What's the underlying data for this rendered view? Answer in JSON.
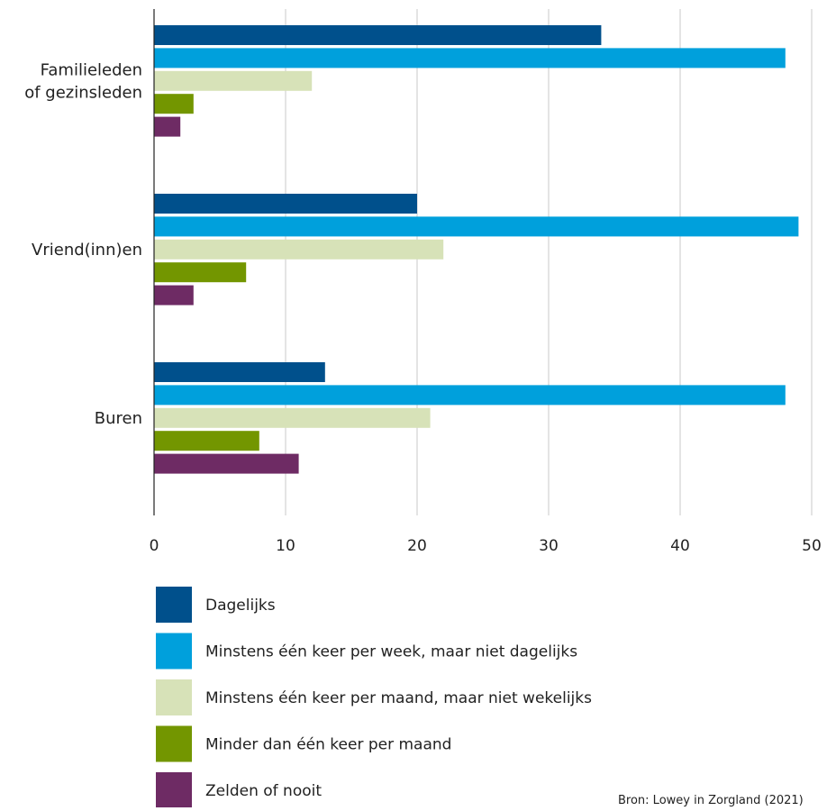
{
  "chart_data": {
    "type": "bar",
    "orientation": "horizontal",
    "title": "",
    "xlabel": "",
    "ylabel": "",
    "xlim": [
      0,
      50
    ],
    "xticks": [
      0,
      10,
      20,
      30,
      40,
      50
    ],
    "grid": true,
    "categories": [
      [
        "Familieleden",
        "of gezinsleden"
      ],
      [
        "Vriend(inn)en"
      ],
      [
        "Buren"
      ]
    ],
    "series": [
      {
        "name": "Dagelijks",
        "color": "#00508c",
        "values": [
          34,
          20,
          13
        ]
      },
      {
        "name": "Minstens één keer per week, maar niet dagelijks",
        "color": "#00a0dc",
        "values": [
          48,
          49,
          48
        ]
      },
      {
        "name": "Minstens één keer per maand, maar niet wekelijks",
        "color": "#d7e2b8",
        "values": [
          12,
          22,
          21
        ]
      },
      {
        "name": "Minder dan één keer per maand",
        "color": "#739600",
        "values": [
          3,
          7,
          8
        ]
      },
      {
        "name": "Zelden of nooit",
        "color": "#6e2b64",
        "values": [
          2,
          3,
          11
        ]
      }
    ],
    "legend_position": "bottom",
    "source": "Bron: Lowey in Zorgland (2021)"
  }
}
